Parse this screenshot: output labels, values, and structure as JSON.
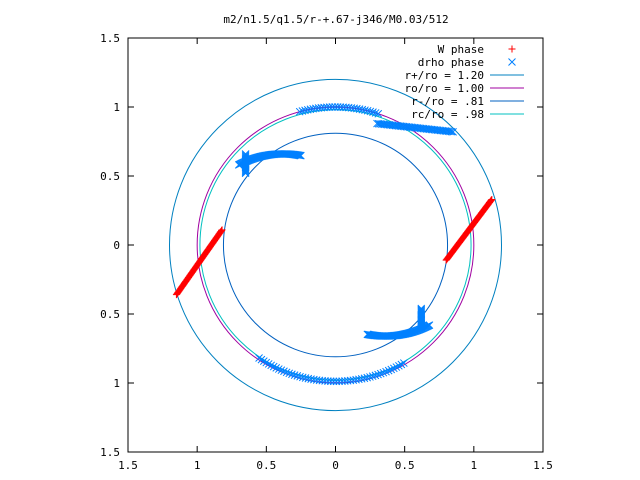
{
  "chart_data": {
    "type": "scatter",
    "title": "m2/n1.5/q1.5/r-+.67-j346/M0.03/512",
    "xlim": [
      -1.5,
      1.5
    ],
    "ylim": [
      -1.5,
      1.5
    ],
    "x_ticks": [
      -1.5,
      -1,
      -0.5,
      0,
      0.5,
      1,
      1.5
    ],
    "y_ticks": [
      -1.5,
      -1,
      -0.5,
      0,
      0.5,
      1,
      1.5
    ],
    "x_tick_labels": [
      "1.5",
      "1",
      "0.5",
      "0",
      "0.5",
      "1",
      "1.5"
    ],
    "y_tick_labels": [
      "1.5",
      "1",
      "0.5",
      "0",
      "0.5",
      "1",
      "1.5"
    ],
    "grid": false,
    "legend_position": "top-right",
    "legend": [
      {
        "label": "W phase",
        "marker": "plus",
        "color": "#ff0000"
      },
      {
        "label": "drho phase",
        "marker": "cross",
        "color": "#0080ff"
      },
      {
        "label": "r+/ro = 1.20",
        "marker": "line",
        "color": "#0080c0"
      },
      {
        "label": "ro/ro = 1.00",
        "marker": "line",
        "color": "#a000a0"
      },
      {
        "label": "r-/ro = .81",
        "marker": "line",
        "color": "#0060c0"
      },
      {
        "label": "rc/ro = .98",
        "marker": "line",
        "color": "#00c0c0"
      }
    ],
    "circles": [
      {
        "name": "r+/ro = 1.20",
        "r": 1.2,
        "color": "#0080c0"
      },
      {
        "name": "ro/ro = 1.00",
        "r": 1.0,
        "color": "#a000a0"
      },
      {
        "name": "r-/ro = .81",
        "r": 0.81,
        "color": "#0060c0"
      },
      {
        "name": "rc/ro = .98",
        "r": 0.98,
        "color": "#00c0c0"
      }
    ],
    "series": [
      {
        "name": "W phase",
        "marker": "plus",
        "color": "#ff0000",
        "segments": [
          {
            "from": [
              -1.15,
              -0.36
            ],
            "to": [
              -0.82,
              0.11
            ],
            "n": 80
          },
          {
            "from": [
              0.8,
              -0.11
            ],
            "to": [
              1.13,
              0.33
            ],
            "n": 80
          }
        ]
      },
      {
        "name": "drho phase",
        "marker": "cross",
        "color": "#0080ff",
        "arcs": [
          {
            "center": [
              -0.38,
              -0.02
            ],
            "radius": 0.68,
            "start_deg": 79,
            "end_deg": 118,
            "n": 70
          },
          {
            "center": [
              0.0,
              0.0
            ],
            "radius": 1.0,
            "start_deg": 72,
            "end_deg": 105,
            "n": 30
          },
          {
            "center": [
              0.0,
              0.0
            ],
            "radius": 0.988,
            "start_deg": 236,
            "end_deg": 300,
            "n": 55
          },
          {
            "center": [
              0.36,
              0.02
            ],
            "radius": 0.68,
            "start_deg": 259,
            "end_deg": 298,
            "n": 70
          }
        ],
        "segments": [
          {
            "from": [
              0.3,
              0.88
            ],
            "to": [
              0.85,
              0.82
            ],
            "n": 50
          },
          {
            "from": [
              -0.65,
              0.52
            ],
            "to": [
              -0.65,
              0.66
            ],
            "n": 18
          },
          {
            "from": [
              0.62,
              -0.46
            ],
            "to": [
              0.62,
              -0.6
            ],
            "n": 18
          }
        ]
      }
    ]
  }
}
